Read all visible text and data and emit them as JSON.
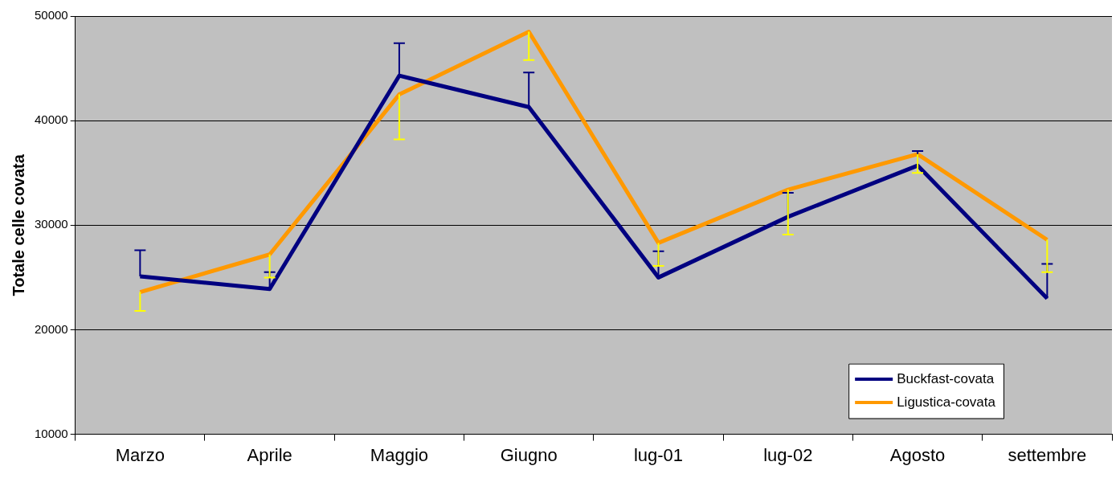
{
  "chart_data": {
    "type": "line",
    "ylabel": "Totale celle covata",
    "categories": [
      "Marzo",
      "Aprile",
      "Maggio",
      "Giugno",
      "lug-01",
      "lug-02",
      "Agosto",
      "settembre"
    ],
    "series": [
      {
        "name": "Buckfast-covata",
        "color": "#000080",
        "values": [
          25100,
          23900,
          44300,
          41300,
          25000,
          30800,
          35700,
          23000
        ],
        "errors": [
          [
            25100,
            27600
          ],
          [
            23900,
            25500
          ],
          [
            44300,
            47400
          ],
          [
            41300,
            44600
          ],
          [
            25000,
            27500
          ],
          [
            30800,
            33100
          ],
          [
            35700,
            37100
          ],
          [
            23000,
            26300
          ]
        ]
      },
      {
        "name": "Ligustica-covata",
        "color": "#ff9900",
        "values": [
          23600,
          27200,
          42500,
          48500,
          28300,
          33400,
          36800,
          28600
        ],
        "errors": [
          [
            21800,
            23600
          ],
          [
            25000,
            27200
          ],
          [
            38200,
            42500
          ],
          [
            45800,
            48500
          ],
          [
            26100,
            28300
          ],
          [
            29100,
            33400
          ],
          [
            35000,
            36800
          ],
          [
            25500,
            28600
          ]
        ]
      }
    ],
    "ylim": [
      10000,
      50000
    ],
    "yticks": [
      10000,
      20000,
      30000,
      40000,
      50000
    ],
    "grid": "y",
    "legend": "bottom right",
    "marker": "none",
    "line_style": "solid"
  }
}
